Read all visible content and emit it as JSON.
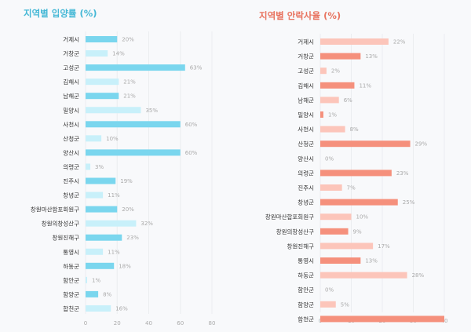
{
  "chart_data": [
    {
      "type": "bar",
      "orientation": "horizontal",
      "title": "지역별 입양률 (%)",
      "title_color": "#45b8d6",
      "categories": [
        "거제시",
        "거창군",
        "고성군",
        "김해시",
        "남해군",
        "밀양시",
        "사천시",
        "산청군",
        "양산시",
        "의령군",
        "진주시",
        "창녕군",
        "창원마산합포회원구",
        "창원의창성산구",
        "창원진해구",
        "통영시",
        "하동군",
        "함안군",
        "함양군",
        "합천군"
      ],
      "values": [
        20,
        14,
        63,
        21,
        21,
        35,
        60,
        10,
        60,
        3,
        19,
        11,
        20,
        32,
        23,
        11,
        18,
        1,
        8,
        16
      ],
      "data_labels": [
        "20%",
        "14%",
        "63%",
        "21%",
        "21%",
        "35%",
        "60%",
        "10%",
        "60%",
        "3%",
        "19%",
        "11%",
        "20%",
        "32%",
        "23%",
        "11%",
        "18%",
        "1%",
        "8%",
        "16%"
      ],
      "xlim": [
        0,
        80
      ],
      "xticks": [
        "0",
        "20",
        "40",
        "60",
        "80"
      ],
      "grid": true,
      "colors": {
        "dark": "#7ad6ee",
        "light": "#c8f0fa"
      }
    },
    {
      "type": "bar",
      "orientation": "horizontal",
      "title": "지역별 안락사율 (%)",
      "title_color": "#e8735f",
      "categories": [
        "거제시",
        "거창군",
        "고성군",
        "김해시",
        "남해군",
        "밀양시",
        "사천시",
        "산청군",
        "양산시",
        "의령군",
        "진주시",
        "창녕군",
        "창원마산합포회원구",
        "창원의창성산구",
        "창원진해구",
        "통영시",
        "하동군",
        "함안군",
        "함양군",
        "합천군"
      ],
      "values": [
        22,
        13,
        2,
        11,
        6,
        1,
        8,
        29,
        0,
        23,
        7,
        25,
        10,
        9,
        17,
        13,
        28,
        0,
        5,
        40
      ],
      "data_labels": [
        "22%",
        "13%",
        "2%",
        "11%",
        "6%",
        "1%",
        "8%",
        "29%",
        "0%",
        "23%",
        "7%",
        "25%",
        "10%",
        "9%",
        "17%",
        "13%",
        "28%",
        "0%",
        "5%",
        ""
      ],
      "xlim": [
        0,
        40
      ],
      "xticks": [
        "0",
        "10",
        "20",
        "30",
        "40"
      ],
      "grid": true,
      "colors": {
        "dark": "#f5907c",
        "light": "#fcc5ba"
      }
    }
  ]
}
